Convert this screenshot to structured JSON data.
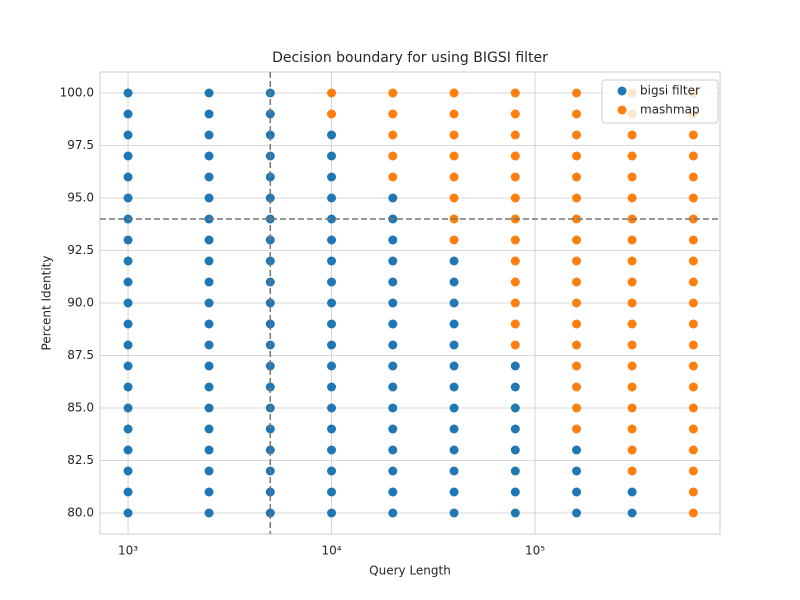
{
  "chart_data": {
    "type": "scatter",
    "title": "Decision boundary for using BIGSI filter",
    "x_label": "Query Length",
    "y_label": "Percent Identity",
    "x_log": true,
    "grid": true,
    "legend_position": "upper right",
    "xlim": [
      728,
      811000
    ],
    "ylim": [
      79,
      101
    ],
    "xticks": [
      {
        "value": 1000,
        "label": "10³"
      },
      {
        "value": 10000,
        "label": "10⁴"
      },
      {
        "value": 100000,
        "label": "10⁵"
      }
    ],
    "yticks": [
      {
        "value": 80,
        "label": "80.0"
      },
      {
        "value": 82.5,
        "label": "82.5"
      },
      {
        "value": 85,
        "label": "85.0"
      },
      {
        "value": 87.5,
        "label": "87.5"
      },
      {
        "value": 90,
        "label": "90.0"
      },
      {
        "value": 92.5,
        "label": "92.5"
      },
      {
        "value": 95,
        "label": "95.0"
      },
      {
        "value": 97.5,
        "label": "97.5"
      },
      {
        "value": 100,
        "label": "100.0"
      }
    ],
    "vlines": [
      5000
    ],
    "hlines": [
      94
    ],
    "series": [
      {
        "name": "bigsi filter",
        "color": "#1f77b4",
        "x": [
          1000,
          1000,
          1000,
          1000,
          1000,
          1000,
          1000,
          1000,
          1000,
          1000,
          1000,
          1000,
          1000,
          1000,
          1000,
          1000,
          1000,
          1000,
          1000,
          1000,
          1000,
          2500,
          2500,
          2500,
          2500,
          2500,
          2500,
          2500,
          2500,
          2500,
          2500,
          2500,
          2500,
          2500,
          2500,
          2500,
          2500,
          2500,
          2500,
          2500,
          2500,
          2500,
          5000,
          5000,
          5000,
          5000,
          5000,
          5000,
          5000,
          5000,
          5000,
          5000,
          5000,
          5000,
          5000,
          5000,
          5000,
          5000,
          5000,
          5000,
          5000,
          5000,
          5000,
          10000,
          10000,
          10000,
          10000,
          10000,
          10000,
          10000,
          10000,
          10000,
          10000,
          10000,
          10000,
          10000,
          10000,
          10000,
          10000,
          10000,
          10000,
          10000,
          20000,
          20000,
          20000,
          20000,
          20000,
          20000,
          20000,
          20000,
          20000,
          20000,
          20000,
          20000,
          20000,
          20000,
          20000,
          20000,
          40000,
          40000,
          40000,
          40000,
          40000,
          40000,
          40000,
          40000,
          40000,
          40000,
          40000,
          40000,
          40000,
          80000,
          80000,
          80000,
          80000,
          80000,
          80000,
          80000,
          80000,
          160000,
          160000,
          160000,
          160000,
          300000,
          300000
        ],
        "values": [
          80,
          81,
          82,
          83,
          84,
          85,
          86,
          87,
          88,
          89,
          90,
          91,
          92,
          93,
          94,
          95,
          96,
          97,
          98,
          99,
          100,
          80,
          81,
          82,
          83,
          84,
          85,
          86,
          87,
          88,
          89,
          90,
          91,
          92,
          93,
          94,
          95,
          96,
          97,
          98,
          99,
          100,
          80,
          81,
          82,
          83,
          84,
          85,
          86,
          87,
          88,
          89,
          90,
          91,
          92,
          93,
          94,
          95,
          96,
          97,
          98,
          99,
          100,
          80,
          81,
          82,
          83,
          84,
          85,
          86,
          87,
          88,
          89,
          90,
          91,
          92,
          93,
          94,
          95,
          96,
          97,
          98,
          80,
          81,
          82,
          83,
          84,
          85,
          86,
          87,
          88,
          89,
          90,
          91,
          92,
          93,
          94,
          95,
          80,
          81,
          82,
          83,
          84,
          85,
          86,
          87,
          88,
          89,
          90,
          91,
          92,
          80,
          81,
          82,
          83,
          84,
          85,
          86,
          87,
          80,
          81,
          82,
          83,
          80,
          81
        ]
      },
      {
        "name": "mashmap",
        "color": "#ff7f0e",
        "x": [
          10000,
          10000,
          20000,
          20000,
          20000,
          20000,
          20000,
          40000,
          40000,
          40000,
          40000,
          40000,
          40000,
          40000,
          40000,
          80000,
          80000,
          80000,
          80000,
          80000,
          80000,
          80000,
          80000,
          80000,
          80000,
          80000,
          80000,
          80000,
          160000,
          160000,
          160000,
          160000,
          160000,
          160000,
          160000,
          160000,
          160000,
          160000,
          160000,
          160000,
          160000,
          160000,
          160000,
          160000,
          160000,
          300000,
          300000,
          300000,
          300000,
          300000,
          300000,
          300000,
          300000,
          300000,
          300000,
          300000,
          300000,
          300000,
          300000,
          300000,
          300000,
          300000,
          300000,
          300000,
          600000,
          600000,
          600000,
          600000,
          600000,
          600000,
          600000,
          600000,
          600000,
          600000,
          600000,
          600000,
          600000,
          600000,
          600000,
          600000,
          600000,
          600000,
          600000,
          600000,
          600000
        ],
        "values": [
          99,
          100,
          96,
          97,
          98,
          99,
          100,
          93,
          94,
          95,
          96,
          97,
          98,
          99,
          100,
          88,
          89,
          90,
          91,
          92,
          93,
          94,
          95,
          96,
          97,
          98,
          99,
          100,
          84,
          85,
          86,
          87,
          88,
          89,
          90,
          91,
          92,
          93,
          94,
          95,
          96,
          97,
          98,
          99,
          100,
          82,
          83,
          84,
          85,
          86,
          87,
          88,
          89,
          90,
          91,
          92,
          93,
          94,
          95,
          96,
          97,
          98,
          99,
          100,
          80,
          81,
          82,
          83,
          84,
          85,
          86,
          87,
          88,
          89,
          90,
          91,
          92,
          93,
          94,
          95,
          96,
          97,
          98,
          99,
          100
        ]
      }
    ]
  }
}
